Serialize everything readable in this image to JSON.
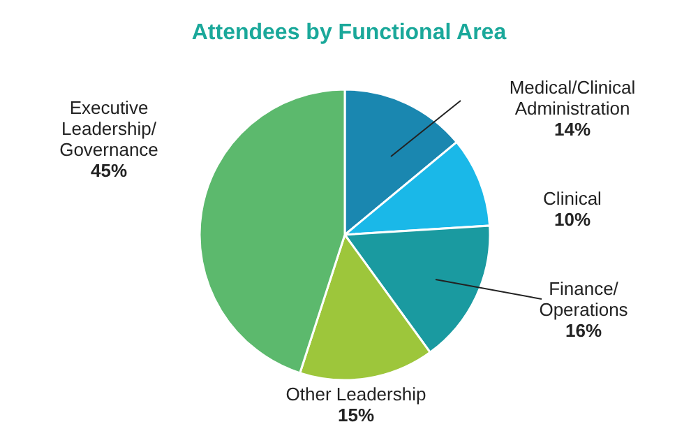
{
  "chart_data": {
    "type": "pie",
    "title": "Attendees by Functional Area",
    "categories": [
      "Medical/Clinical Administration",
      "Clinical",
      "Finance/Operations",
      "Other Leadership",
      "Executive Leadership/Governance"
    ],
    "values": [
      14,
      10,
      16,
      15,
      45
    ],
    "value_labels": [
      "14%",
      "10%",
      "16%",
      "15%",
      "45%"
    ],
    "colors": [
      "#1a87b0",
      "#1ab8e8",
      "#1a9aa0",
      "#9dc63b",
      "#5cb96d"
    ]
  }
}
